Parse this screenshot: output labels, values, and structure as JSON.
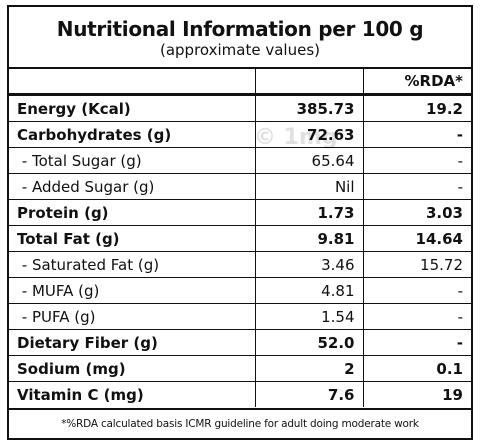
{
  "header": {
    "title": "Nutritional Information per 100 g",
    "subtitle": "(approximate values)"
  },
  "table": {
    "columns": [
      "",
      "",
      "%RDA*"
    ],
    "rows": [
      {
        "cells": [
          "Energy (Kcal)",
          "385.73",
          "19.2"
        ],
        "bold": true
      },
      {
        "cells": [
          "Carbohydrates (g)",
          "72.63",
          "-"
        ],
        "bold": true
      },
      {
        "cells": [
          " - Total Sugar (g)",
          "65.64",
          "-"
        ],
        "bold": false
      },
      {
        "cells": [
          " - Added Sugar (g)",
          "Nil",
          "-"
        ],
        "bold": false
      },
      {
        "cells": [
          "Protein (g)",
          "1.73",
          "3.03"
        ],
        "bold": true
      },
      {
        "cells": [
          "Total Fat (g)",
          "9.81",
          "14.64"
        ],
        "bold": true
      },
      {
        "cells": [
          " - Saturated Fat (g)",
          "3.46",
          "15.72"
        ],
        "bold": false
      },
      {
        "cells": [
          " - MUFA (g)",
          "4.81",
          "-"
        ],
        "bold": false
      },
      {
        "cells": [
          " - PUFA (g)",
          "1.54",
          "-"
        ],
        "bold": false
      },
      {
        "cells": [
          "Dietary Fiber (g)",
          "52.0",
          "-"
        ],
        "bold": true
      },
      {
        "cells": [
          "Sodium (mg)",
          "2",
          "0.1"
        ],
        "bold": true
      },
      {
        "cells": [
          "Vitamin C (mg)",
          "7.6",
          "19"
        ],
        "bold": true
      }
    ]
  },
  "watermark": "© 1mg",
  "footnote": "*%RDA calculated basis ICMR guideline for adult doing moderate work"
}
